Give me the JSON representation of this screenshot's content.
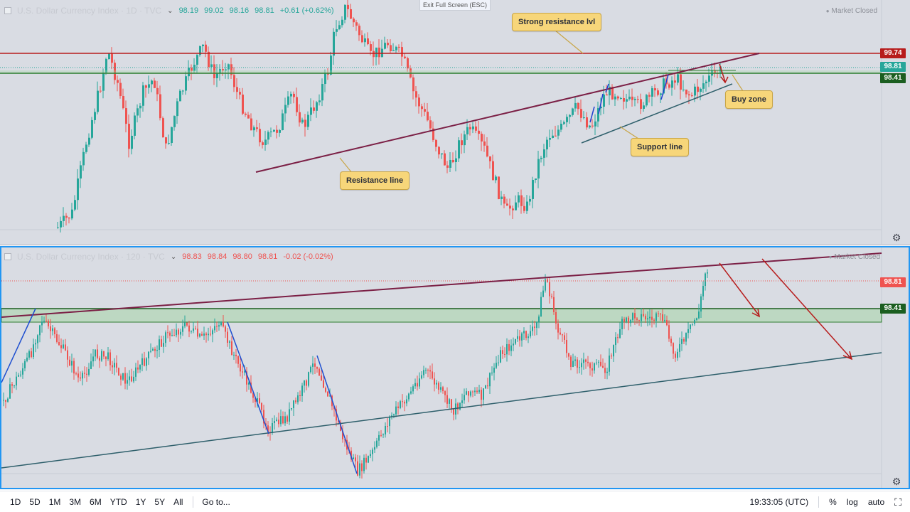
{
  "top_pane": {
    "symbol": "U.S. Dollar Currency Index · 1D · TVC",
    "ohlc": {
      "open": "98.19",
      "high": "99.02",
      "low": "98.16",
      "close": "98.81",
      "change": "+0.61 (+0.62%)"
    },
    "exit_fullscreen": "Exit Full Screen (ESC)",
    "market_status": "Market Closed",
    "price_labels": [
      {
        "value": "99.74",
        "color": "#b71c1c"
      },
      {
        "value": "98.81",
        "color": "#26a69a"
      },
      {
        "value": "98.41",
        "color": "#1b5e20"
      }
    ],
    "annotations": {
      "strong_resistance": "Strong resistance lvl",
      "resistance_line": "Resistance line",
      "support_line": "Support line",
      "buy_zone": "Buy zone"
    },
    "settings_icon": "gear-icon"
  },
  "bottom_pane": {
    "symbol": "U.S. Dollar Currency Index · 120 · TVC",
    "ohlc": {
      "open": "98.83",
      "high": "98.84",
      "low": "98.80",
      "close": "98.81",
      "change": "-0.02 (-0.02%)"
    },
    "market_status": "Market Closed",
    "price_labels": [
      {
        "value": "98.81",
        "color": "#ef5350"
      },
      {
        "value": "98.41",
        "color": "#1b5e20"
      }
    ],
    "settings_icon": "gear-icon"
  },
  "bottom_bar": {
    "ranges": [
      "1D",
      "5D",
      "1M",
      "3M",
      "6M",
      "YTD",
      "1Y",
      "5Y",
      "All"
    ],
    "goto": "Go to...",
    "time": "19:33:05 (UTC)",
    "percent": "%",
    "log": "log",
    "auto": "auto",
    "fullscreen_icon": "fullscreen-icon"
  },
  "colors": {
    "up": "#26a69a",
    "down": "#ef5350",
    "resistance": "#7b1f45",
    "strong_resistance": "#b71c1c",
    "support": "#2e5f6b",
    "zone": "#4caf50",
    "pane_bg": "#d9dce3",
    "active_border": "#2196f3"
  }
}
